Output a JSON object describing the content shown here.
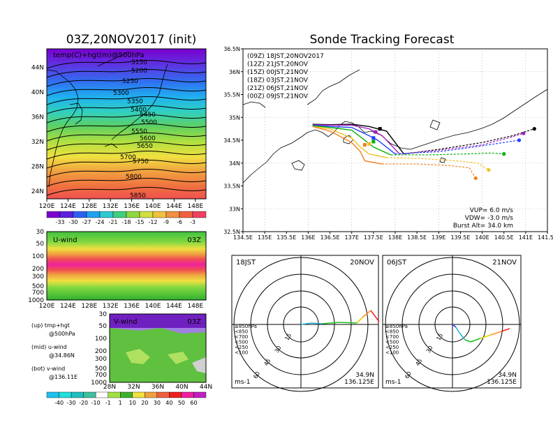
{
  "left_title": "03Z,20NOV2017 (init)",
  "right_title": "Sonde Tracking Forecast",
  "map_panel": {
    "label": "temp(C)+hgt(m)@500hPa",
    "x_ticks": [
      "120E",
      "124E",
      "128E",
      "132E",
      "136E",
      "140E",
      "144E",
      "148E"
    ],
    "y_ticks": [
      "24N",
      "28N",
      "32N",
      "36N",
      "40N",
      "44N"
    ],
    "contours": [
      "5150",
      "5200",
      "5250",
      "5300",
      "5350",
      "5400",
      "5450",
      "5500",
      "5550",
      "5600",
      "5650",
      "5700",
      "5750",
      "5800",
      "5850"
    ],
    "colorbar_labels": [
      "-33",
      "-30",
      "-27",
      "-24",
      "-21",
      "-18",
      "-15",
      "-12",
      "-9",
      "-6",
      "-3"
    ]
  },
  "uwind_panel": {
    "label": "U-wind",
    "time": "03Z",
    "y_ticks": [
      "30",
      "50",
      "100",
      "200",
      "300",
      "500",
      "700",
      "1000"
    ],
    "x_ticks": [
      "120E",
      "124E",
      "128E",
      "132E",
      "136E",
      "140E",
      "144E",
      "148E"
    ]
  },
  "vwind_panel": {
    "label": "V-wind",
    "time": "03Z",
    "y_ticks": [
      "30",
      "50",
      "100",
      "200",
      "300",
      "500",
      "700",
      "1000"
    ],
    "x_ticks": [
      "28N",
      "32N",
      "36N",
      "40N",
      "44N"
    ]
  },
  "legend_text": {
    "up": [
      "(up) tmp+hgt",
      "@500hPa"
    ],
    "mid": [
      "(mid) u-wind",
      "@34.86N"
    ],
    "bot": [
      "(bot) v-wind",
      "@136.11E"
    ]
  },
  "wind_colorbar_labels": [
    "-40",
    "-30",
    "-20",
    "-10",
    "-1",
    "1",
    "10",
    "20",
    "30",
    "40",
    "50",
    "60"
  ],
  "track_panel": {
    "entries": [
      {
        "text": "(09Z)  18JST,20NOV2017",
        "color": "#000000"
      },
      {
        "text": "(12Z)  21JST,20NOV",
        "color": "#a020c0"
      },
      {
        "text": "(15Z)  00JST,21NOV",
        "color": "#2040ff"
      },
      {
        "text": "(18Z)  03JST,21NOV",
        "color": "#00b000"
      },
      {
        "text": "(21Z)  06JST,21NOV",
        "color": "#f0c020"
      },
      {
        "text": "(00Z)  09JST,21NOV",
        "color": "#f08020"
      }
    ],
    "x_ticks": [
      "134.5E",
      "135E",
      "135.5E",
      "136E",
      "136.5E",
      "137E",
      "137.5E",
      "138E",
      "138.5E",
      "139E",
      "139.5E",
      "140E",
      "140.5E",
      "141E",
      "141.5E"
    ],
    "y_ticks": [
      "32.5N",
      "33N",
      "33.5N",
      "34N",
      "34.5N",
      "35N",
      "35.5N",
      "36N",
      "36.5N"
    ],
    "params": [
      "VUP=  6.0  m/s",
      "VDW= -3.0  m/s",
      "Burst Alt=  34.0  km"
    ]
  },
  "hodographs": [
    {
      "time": "18JST",
      "date": "20NOV",
      "lat": "34.9N",
      "lon": "136.125E",
      "unit": "ms-1"
    },
    {
      "time": "06JST",
      "date": "21NOV",
      "lat": "34.9N",
      "lon": "136.125E",
      "unit": "ms-1"
    }
  ],
  "hodo_legend": [
    {
      "text": "≥850hPa",
      "color": "#ff2020"
    },
    {
      "text": "<850",
      "color": "#ff9020"
    },
    {
      "text": "<700",
      "color": "#e0d000"
    },
    {
      "text": "<500",
      "color": "#20c020"
    },
    {
      "text": "<250",
      "color": "#20b0e0"
    },
    {
      "text": "<100",
      "color": "#2040ff"
    }
  ],
  "ring_labels": [
    "15",
    "30",
    "45",
    "60"
  ],
  "chart_data": [
    {
      "type": "heatmap",
      "title": "temp(C)+hgt(m)@500hPa",
      "x_range": [
        120,
        150
      ],
      "y_range": [
        22,
        47
      ],
      "contour_levels": [
        5150,
        5200,
        5250,
        5300,
        5350,
        5400,
        5450,
        5500,
        5550,
        5600,
        5650,
        5700,
        5750,
        5800,
        5850
      ]
    },
    {
      "type": "heatmap",
      "title": "U-wind",
      "x_range": [
        120,
        150
      ],
      "y_levels": [
        30,
        50,
        100,
        200,
        300,
        500,
        700,
        1000
      ]
    },
    {
      "type": "heatmap",
      "title": "V-wind",
      "x_range": [
        28,
        44
      ],
      "y_levels": [
        30,
        50,
        100,
        200,
        300,
        500,
        700,
        1000
      ]
    },
    {
      "type": "line",
      "title": "Sonde Tracking Forecast",
      "xlim": [
        134.5,
        141.5
      ],
      "ylim": [
        32.5,
        36.5
      ],
      "series": [
        {
          "name": "(09Z)  18JST,20NOV2017",
          "color": "#000000",
          "x": [
            136.1,
            136.5,
            137.0,
            137.4,
            137.8,
            138.2,
            139.0,
            140.0,
            140.7,
            141.2
          ],
          "y": [
            34.85,
            34.84,
            34.85,
            34.8,
            34.7,
            34.2,
            34.3,
            34.45,
            34.6,
            34.75
          ],
          "burst": [
            137.65,
            34.75
          ]
        },
        {
          "name": "(12Z)  21JST,20NOV",
          "color": "#a020c0",
          "x": [
            136.1,
            136.5,
            137.0,
            137.4,
            137.7,
            138.1,
            139.0,
            140.0,
            140.6,
            140.95
          ],
          "y": [
            34.84,
            34.83,
            34.83,
            34.75,
            34.6,
            34.2,
            34.28,
            34.4,
            34.55,
            34.65
          ],
          "burst": [
            137.55,
            34.68
          ]
        },
        {
          "name": "(15Z)  00JST,21NOV",
          "color": "#2040ff",
          "x": [
            136.1,
            136.5,
            137.0,
            137.4,
            137.6,
            138.0,
            139.0,
            139.8,
            140.5,
            140.85
          ],
          "y": [
            34.83,
            34.8,
            34.78,
            34.6,
            34.5,
            34.2,
            34.25,
            34.35,
            34.45,
            34.5
          ],
          "burst": [
            137.5,
            34.55
          ]
        },
        {
          "name": "(18Z)  03JST,21NOV",
          "color": "#00b000",
          "x": [
            136.1,
            136.5,
            137.0,
            137.3,
            137.5,
            137.9,
            138.8,
            139.6,
            140.2,
            140.5
          ],
          "y": [
            34.82,
            34.78,
            34.72,
            34.5,
            34.35,
            34.18,
            34.18,
            34.2,
            34.22,
            34.2
          ],
          "burst": [
            137.5,
            34.47
          ]
        },
        {
          "name": "(21Z)  06JST,21NOV",
          "color": "#f0c020",
          "x": [
            136.1,
            136.5,
            137.0,
            137.2,
            137.4,
            137.8,
            138.6,
            139.4,
            139.9,
            140.15
          ],
          "y": [
            34.8,
            34.75,
            34.55,
            34.35,
            34.2,
            34.12,
            34.1,
            34.05,
            34.0,
            33.85
          ],
          "burst": [
            137.4,
            34.42
          ]
        },
        {
          "name": "(00Z)  09JST,21NOV",
          "color": "#f08020",
          "x": [
            136.1,
            136.5,
            137.0,
            137.2,
            137.3,
            137.7,
            138.5,
            139.2,
            139.7,
            139.85
          ],
          "y": [
            34.8,
            34.7,
            34.45,
            34.25,
            34.05,
            33.98,
            33.98,
            33.95,
            33.9,
            33.67
          ],
          "burst": [
            137.3,
            34.4
          ]
        }
      ]
    }
  ]
}
